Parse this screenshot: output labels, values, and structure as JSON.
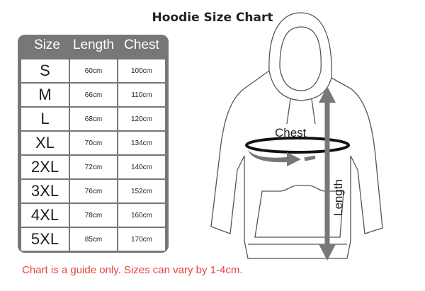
{
  "title": "Hoodie Size Chart",
  "table": {
    "headers": [
      "Size",
      "Length",
      "Chest"
    ],
    "rows": [
      [
        "S",
        "60cm",
        "100cm"
      ],
      [
        "M",
        "66cm",
        "110cm"
      ],
      [
        "L",
        "68cm",
        "120cm"
      ],
      [
        "XL",
        "70cm",
        "134cm"
      ],
      [
        "2XL",
        "72cm",
        "140cm"
      ],
      [
        "3XL",
        "76cm",
        "152cm"
      ],
      [
        "4XL",
        "78cm",
        "160cm"
      ],
      [
        "5XL",
        "85cm",
        "170cm"
      ]
    ]
  },
  "diagram": {
    "chest_label": "Chest",
    "length_label": "Length",
    "arrow_color": "#77777a"
  },
  "note": "Chart is a guide only. Sizes can vary by 1-4cm.",
  "colors": {
    "table_frame": "#77777a",
    "note": "#e8413c"
  }
}
